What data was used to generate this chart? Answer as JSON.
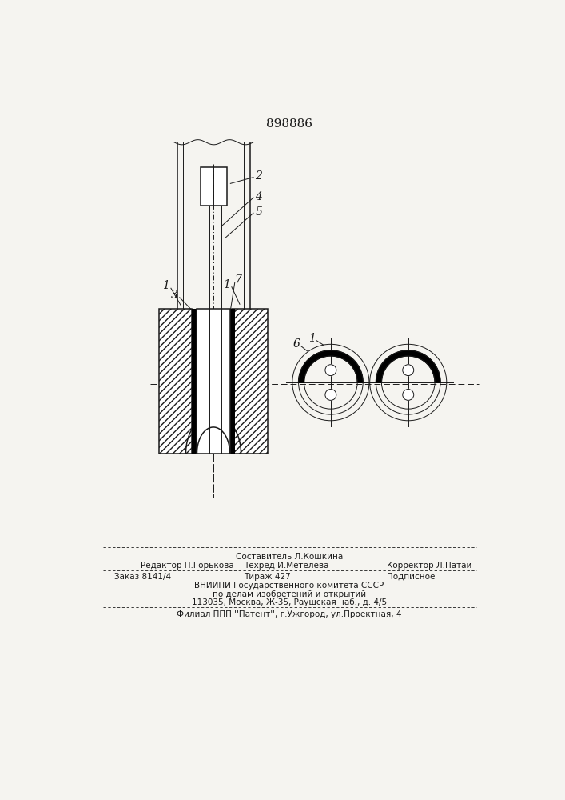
{
  "patent_number": "898886",
  "bg_color": "#f5f4f0",
  "line_color": "#1a1a1a",
  "footer_line1": "Составитель Л.Кошкина",
  "footer_line2a": "Редактор П.Горькова",
  "footer_line2b": "Техред И.Метелева",
  "footer_line2c": "Корректор Л.Патай",
  "footer_line3a": "Заказ 8141/4",
  "footer_line3b": "Тираж 427",
  "footer_line3c": "Подписное",
  "footer_line4": "ВНИИПИ Государственного комитета СССР",
  "footer_line5": "по делам изобретений и открытий",
  "footer_line6": "113035, Москва, Ж-35, Раушская наб., д. 4/5",
  "footer_line7": "Филиал ППП ''Патент'', г.Ужгород, ул.Проектная, 4"
}
